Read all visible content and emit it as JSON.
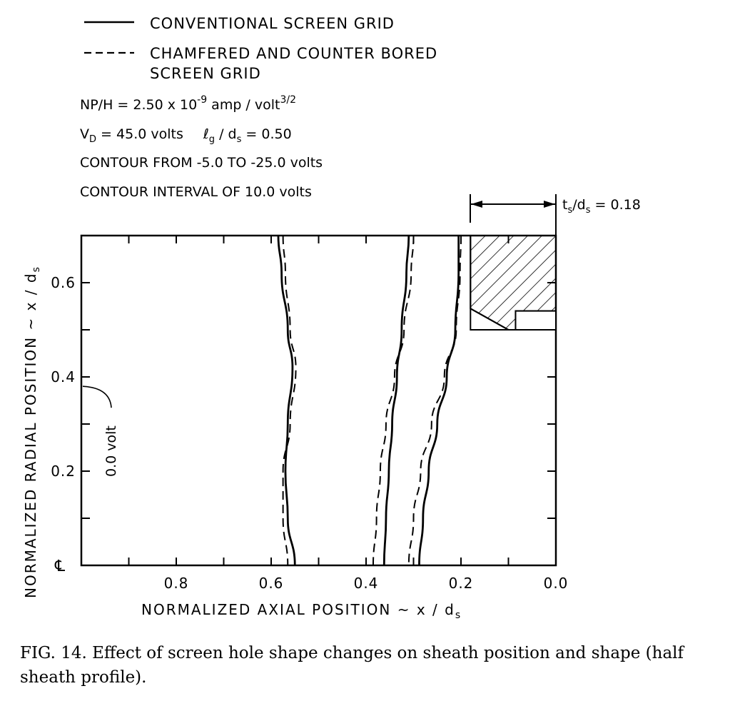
{
  "legend": {
    "conventional_label": "CONVENTIONAL SCREEN GRID",
    "chamfered_label_line1": "CHAMFERED AND COUNTER BORED",
    "chamfered_label_line2": "SCREEN GRID"
  },
  "parameters": {
    "perveance_prefix": "NP/H = 2.50 x 10",
    "perveance_exp": "-9",
    "perveance_unit": " amp / volt",
    "perveance_unit_exp": "3/2",
    "vd_prefix": "V",
    "vd_sub": "D",
    "vd_value": " = 45.0 volts",
    "lg_symbol": "ℓ",
    "lg_sub": "g",
    "lg_slash": " / d",
    "lg_sub2": "s",
    "lg_value": " = 0.50",
    "contour_range": "CONTOUR  FROM  -5.0  TO  -25.0 volts",
    "contour_interval": "CONTOUR  INTERVAL  OF  10.0 volts"
  },
  "thickness_annotation": {
    "prefix": "t",
    "sub1": "s",
    "slash": "/d",
    "sub2": "s",
    "value": " = 0.18"
  },
  "annotation_zero_volt": "0.0 volt",
  "centerline_symbol": "℄",
  "caption": "FIG. 14. Effect of screen hole shape changes on sheath position and shape (half sheath profile).",
  "chart_data": {
    "type": "line",
    "x_reversed": true,
    "xlim": [
      1.0,
      0.0
    ],
    "ylim": [
      0.0,
      0.7
    ],
    "x_ticks": [
      0.8,
      0.6,
      0.4,
      0.2,
      0.0
    ],
    "x_tick_labels": [
      "0.8",
      "0.6",
      "0.4",
      "0.2",
      "0.0"
    ],
    "y_ticks": [
      0.6,
      0.4,
      0.2
    ],
    "y_tick_labels": [
      "0.6",
      "0.4",
      "0.2"
    ],
    "xlabel_prefix": "NORMALIZED  AXIAL  POSITION  ~ x / d",
    "xlabel_sub": "s",
    "ylabel_prefix": "NORMALIZED  RADIAL  POSITION  ~ x / d",
    "ylabel_sub": "s",
    "series": [
      {
        "name": "CONVENTIONAL SCREEN GRID",
        "style": "solid",
        "points": [
          [
            0.585,
            0.7
          ],
          [
            0.578,
            0.62
          ],
          [
            0.565,
            0.5
          ],
          [
            0.555,
            0.42
          ],
          [
            0.565,
            0.3
          ],
          [
            0.57,
            0.2
          ],
          [
            0.565,
            0.1
          ],
          [
            0.55,
            0.0
          ]
        ]
      },
      {
        "name": "CONVENTIONAL SCREEN GRID",
        "style": "solid",
        "points": [
          [
            0.31,
            0.7
          ],
          [
            0.315,
            0.62
          ],
          [
            0.325,
            0.5
          ],
          [
            0.335,
            0.4
          ],
          [
            0.345,
            0.3
          ],
          [
            0.352,
            0.2
          ],
          [
            0.358,
            0.1
          ],
          [
            0.362,
            0.0
          ]
        ]
      },
      {
        "name": "CONVENTIONAL SCREEN GRID",
        "style": "solid",
        "points": [
          [
            0.205,
            0.7
          ],
          [
            0.205,
            0.62
          ],
          [
            0.212,
            0.5
          ],
          [
            0.23,
            0.4
          ],
          [
            0.25,
            0.3
          ],
          [
            0.268,
            0.2
          ],
          [
            0.28,
            0.1
          ],
          [
            0.288,
            0.0
          ]
        ]
      },
      {
        "name": "CHAMFERED AND COUNTER BORED SCREEN GRID",
        "style": "dashed",
        "points": [
          [
            0.575,
            0.7
          ],
          [
            0.57,
            0.62
          ],
          [
            0.56,
            0.5
          ],
          [
            0.548,
            0.42
          ],
          [
            0.56,
            0.3
          ],
          [
            0.575,
            0.2
          ],
          [
            0.575,
            0.1
          ],
          [
            0.565,
            0.0
          ]
        ]
      },
      {
        "name": "CHAMFERED AND COUNTER BORED SCREEN GRID",
        "style": "dashed",
        "points": [
          [
            0.3,
            0.7
          ],
          [
            0.305,
            0.62
          ],
          [
            0.32,
            0.5
          ],
          [
            0.34,
            0.4
          ],
          [
            0.358,
            0.3
          ],
          [
            0.37,
            0.2
          ],
          [
            0.378,
            0.1
          ],
          [
            0.385,
            0.0
          ]
        ]
      },
      {
        "name": "CHAMFERED AND COUNTER BORED SCREEN GRID",
        "style": "dashed",
        "points": [
          [
            0.2,
            0.7
          ],
          [
            0.202,
            0.62
          ],
          [
            0.21,
            0.5
          ],
          [
            0.235,
            0.4
          ],
          [
            0.262,
            0.3
          ],
          [
            0.285,
            0.2
          ],
          [
            0.3,
            0.1
          ],
          [
            0.31,
            0.0
          ]
        ]
      }
    ],
    "grid_region": {
      "x_from": 0.18,
      "x_to": 0.0,
      "y_from": 0.5,
      "y_to": 0.7,
      "chamfer_point_x": 0.1,
      "counterbore_x_from": 0.085,
      "counterbore_y_top": 0.54
    },
    "zero_volt_y": 0.38
  }
}
